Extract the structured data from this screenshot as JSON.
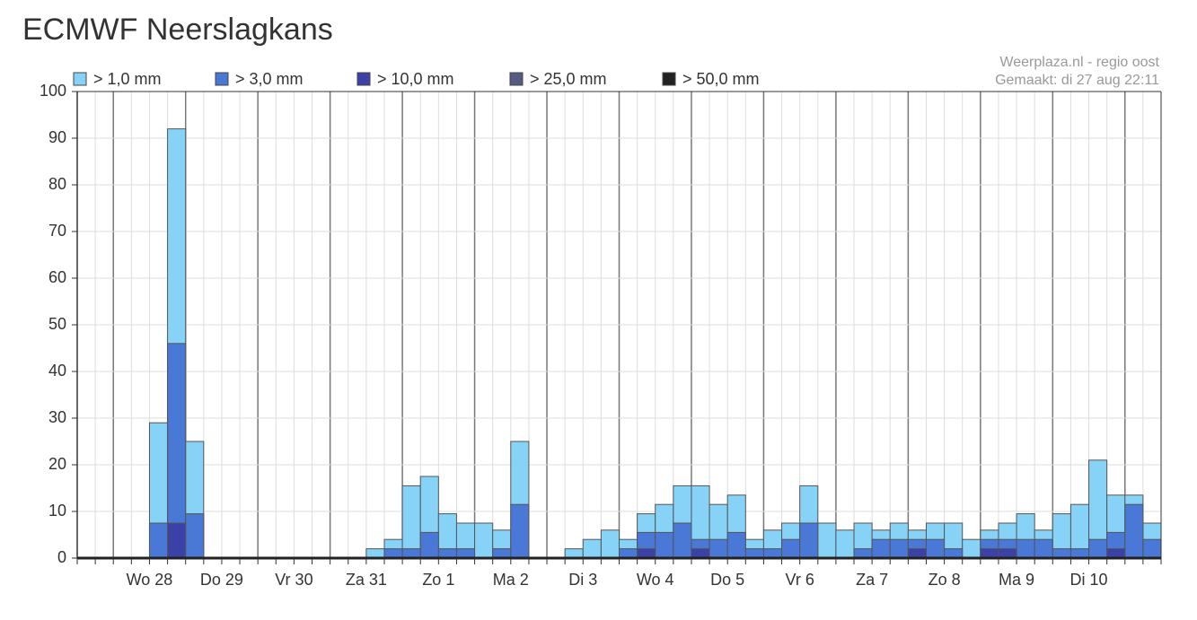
{
  "chart_data": {
    "type": "bar",
    "title": "ECMWF Neerslagkans",
    "annotations": [
      "Weerplaza.nl - regio oost",
      "Gemaakt: di 27 aug 22:11"
    ],
    "days": [
      "Wo 28",
      "Do 29",
      "Vr 30",
      "Za 31",
      "Zo 1",
      "Ma 2",
      "Di 3",
      "Wo 4",
      "Do 5",
      "Vr 6",
      "Za 7",
      "Zo 8",
      "Ma 9",
      "Di 10"
    ],
    "ylim": [
      0,
      100
    ],
    "yticks": [
      0,
      10,
      20,
      30,
      40,
      50,
      60,
      70,
      80,
      90,
      100
    ],
    "grid": true,
    "series": [
      {
        "name": "> 1,0 mm",
        "color": "#87d3f7",
        "values": [
          0,
          0,
          0,
          0,
          29,
          92,
          25,
          0,
          0,
          0,
          0,
          0,
          0,
          0,
          0,
          0,
          2,
          4,
          15.5,
          17.5,
          9.5,
          7.5,
          7.5,
          6,
          25,
          0,
          0,
          2,
          4,
          6,
          4,
          9.5,
          11.5,
          15.5,
          15.5,
          11.5,
          13.5,
          4,
          6,
          7.5,
          15.5,
          7.5,
          6,
          7.5,
          6,
          7.5,
          6,
          7.5,
          7.5,
          4,
          6,
          7.5,
          9.5,
          6,
          9.5,
          11.5,
          21,
          13.5,
          13.5,
          7.5
        ]
      },
      {
        "name": "> 3,0 mm",
        "color": "#4a78d6",
        "values": [
          0,
          0,
          0,
          0,
          7.5,
          46,
          9.5,
          0,
          0,
          0,
          0,
          0,
          0,
          0,
          0,
          0,
          0,
          2,
          2,
          5.5,
          2,
          2,
          0,
          2,
          11.5,
          0,
          0,
          0,
          0,
          0,
          2,
          5.5,
          5.5,
          7.5,
          4,
          4,
          5.5,
          2,
          2,
          4,
          7.5,
          0,
          0,
          2,
          4,
          4,
          4,
          4,
          2,
          0,
          4,
          4,
          4,
          4,
          2,
          2,
          4,
          5.5,
          11.5,
          4
        ]
      },
      {
        "name": "> 10,0 mm",
        "color": "#3c41a8",
        "values": [
          0,
          0,
          0,
          0,
          0,
          7.5,
          0,
          0,
          0,
          0,
          0,
          0,
          0,
          0,
          0,
          0,
          0,
          0,
          0,
          0,
          0,
          0,
          0,
          0,
          0,
          0,
          0,
          0,
          0,
          0,
          0,
          2,
          0,
          0,
          2,
          0,
          0,
          0,
          0,
          0,
          0,
          0,
          0,
          0,
          0,
          0,
          2,
          0,
          0,
          0,
          2,
          2,
          0,
          0,
          0,
          0,
          0,
          2,
          0,
          0
        ]
      },
      {
        "name": "> 25,0 mm",
        "color": "#565b82",
        "values": [
          0,
          0,
          0,
          0,
          0,
          0,
          0,
          0,
          0,
          0,
          0,
          0,
          0,
          0,
          0,
          0,
          0,
          0,
          0,
          0,
          0,
          0,
          0,
          0,
          0,
          0,
          0,
          0,
          0,
          0,
          0,
          0,
          0,
          0,
          0,
          0,
          0,
          0,
          0,
          0,
          0,
          0,
          0,
          0,
          0,
          0,
          0,
          0,
          0,
          0,
          0,
          0,
          0,
          0,
          0,
          0,
          0,
          0,
          0,
          0
        ]
      },
      {
        "name": "> 50,0 mm",
        "color": "#222222",
        "values": [
          0,
          0,
          0,
          0,
          0,
          0,
          0,
          0,
          0,
          0,
          0,
          0,
          0,
          0,
          0,
          0,
          0,
          0,
          0,
          0,
          0,
          0,
          0,
          0,
          0,
          0,
          0,
          0,
          0,
          0,
          0,
          0,
          0,
          0,
          0,
          0,
          0,
          0,
          0,
          0,
          0,
          0,
          0,
          0,
          0,
          0,
          0,
          0,
          0,
          0,
          0,
          0,
          0,
          0,
          0,
          0,
          0,
          0,
          0,
          0
        ]
      }
    ]
  }
}
